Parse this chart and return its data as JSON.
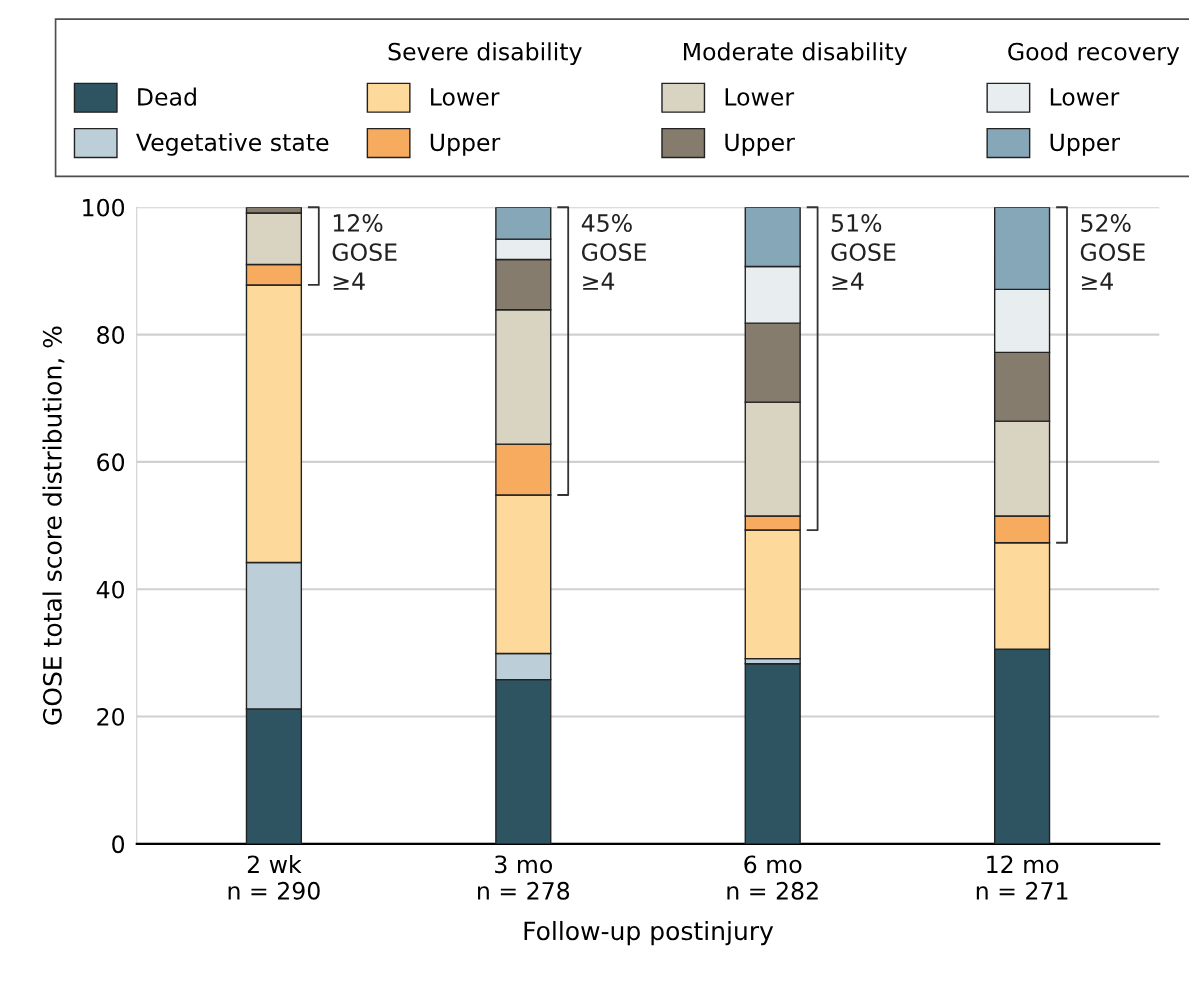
{
  "chart_data": {
    "type": "bar",
    "stacked": true,
    "categories": [
      "2 wk\nn = 290",
      "3 mo\nn = 278",
      "6 mo\nn = 282",
      "12 mo\nn = 271"
    ],
    "xlabel": "Follow-up postinjury",
    "ylabel": "GOSE total score distribution, %",
    "ylim": [
      0,
      100
    ],
    "yticks": [
      0,
      20,
      40,
      60,
      80,
      100
    ],
    "grid": "y",
    "legend": "top",
    "series": [
      {
        "name": "Dead",
        "color": "#2e5361",
        "values": [
          21.2,
          25.8,
          28.3,
          30.6
        ]
      },
      {
        "name": "Vegetative state",
        "color": "#bccfd9",
        "values": [
          23.0,
          4.1,
          0.8,
          0
        ]
      },
      {
        "name": "Lower",
        "color": "#fdd99b",
        "values": [
          43.6,
          24.9,
          20.2,
          16.7
        ]
      },
      {
        "name": "Upper",
        "color": "#f7ab5e",
        "values": [
          3.2,
          8.0,
          2.2,
          4.2
        ]
      },
      {
        "name": "Lower",
        "color": "#d9d3c1",
        "values": [
          8.1,
          21.1,
          17.9,
          14.9
        ]
      },
      {
        "name": "Upper",
        "color": "#857c6d",
        "values": [
          0.9,
          7.9,
          12.4,
          10.8
        ]
      },
      {
        "name": "Lower",
        "color": "#e8edf0",
        "values": [
          0,
          3.2,
          8.9,
          9.9
        ]
      },
      {
        "name": "Upper",
        "color": "#86a7b7",
        "values": [
          0,
          5.0,
          9.3,
          12.9
        ]
      }
    ],
    "annotations": [
      "Severe disability",
      "Moderate disability",
      "Good recovery",
      "12%\nGOSE\n≥4",
      "45%\nGOSE\n≥4",
      "51%\nGOSE\n≥4",
      "52%\nGOSE\n≥4"
    ]
  }
}
